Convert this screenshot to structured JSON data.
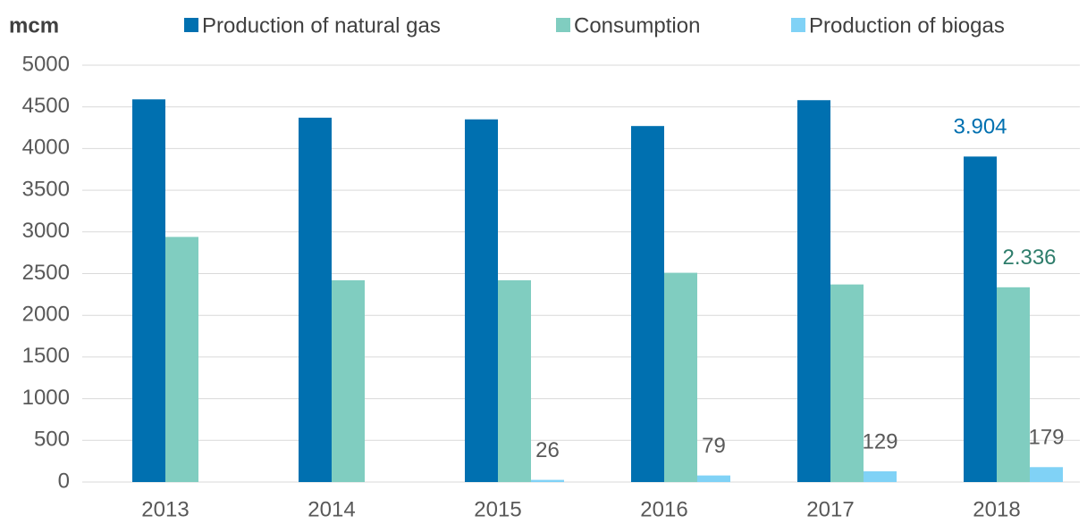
{
  "chart_data": {
    "type": "bar",
    "y_label": "mcm",
    "categories": [
      "2013",
      "2014",
      "2015",
      "2016",
      "2017",
      "2018"
    ],
    "series": [
      {
        "name": "Production of natural gas",
        "color": "#0070b0",
        "label_color": "#0070b0",
        "values": [
          4590,
          4370,
          4350,
          4270,
          4580,
          3904
        ],
        "value_labels": [
          null,
          null,
          null,
          null,
          null,
          "3.904"
        ]
      },
      {
        "name": "Consumption",
        "color": "#80cdc0",
        "label_color": "#2e7d6b",
        "values": [
          2940,
          2420,
          2420,
          2510,
          2370,
          2336
        ],
        "value_labels": [
          null,
          null,
          null,
          null,
          null,
          "2.336"
        ]
      },
      {
        "name": "Production of biogas",
        "color": "#80d2f6",
        "label_color": "#595959",
        "values": [
          null,
          null,
          26,
          79,
          129,
          179
        ],
        "value_labels": [
          null,
          null,
          "26",
          "79",
          "129",
          "179"
        ]
      }
    ],
    "ylim": [
      0,
      5000
    ],
    "yticks": [
      0,
      500,
      1000,
      1500,
      2000,
      2500,
      3000,
      3500,
      4000,
      4500,
      5000
    ],
    "grid": true,
    "legend": "top"
  }
}
